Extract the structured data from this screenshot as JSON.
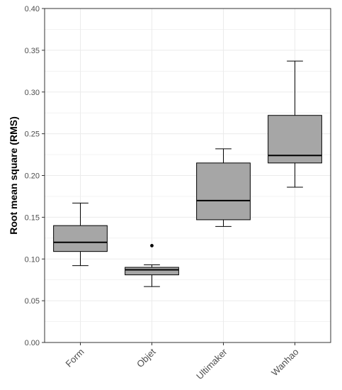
{
  "chart_data": {
    "type": "boxplot",
    "ylabel": "Root mean square (RMS)",
    "xlabel": "",
    "ylim": [
      0,
      0.4
    ],
    "y_ticks": [
      "0.00",
      "0.05",
      "0.10",
      "0.15",
      "0.20",
      "0.25",
      "0.30",
      "0.35",
      "0.40"
    ],
    "y_tick_values": [
      0,
      0.05,
      0.1,
      0.15,
      0.2,
      0.25,
      0.3,
      0.35,
      0.4
    ],
    "grid": true,
    "legend": "none",
    "colors": {
      "box_fill": "#a6a6a6",
      "stroke": "#000000",
      "grid": "#ebebeb",
      "panel_border": "#333333"
    },
    "categories": [
      "Form",
      "Objet",
      "Ultimaker",
      "Wanhao"
    ],
    "boxes": [
      {
        "category": "Form",
        "whisker_low": 0.092,
        "q1": 0.109,
        "median": 0.12,
        "q3": 0.14,
        "whisker_high": 0.167,
        "outliers": []
      },
      {
        "category": "Objet",
        "whisker_low": 0.067,
        "q1": 0.081,
        "median": 0.087,
        "q3": 0.09,
        "whisker_high": 0.093,
        "outliers": [
          0.116
        ]
      },
      {
        "category": "Ultimaker",
        "whisker_low": 0.139,
        "q1": 0.147,
        "median": 0.17,
        "q3": 0.215,
        "whisker_high": 0.232,
        "outliers": []
      },
      {
        "category": "Wanhao",
        "whisker_low": 0.186,
        "q1": 0.215,
        "median": 0.224,
        "q3": 0.272,
        "whisker_high": 0.337,
        "outliers": []
      }
    ]
  }
}
